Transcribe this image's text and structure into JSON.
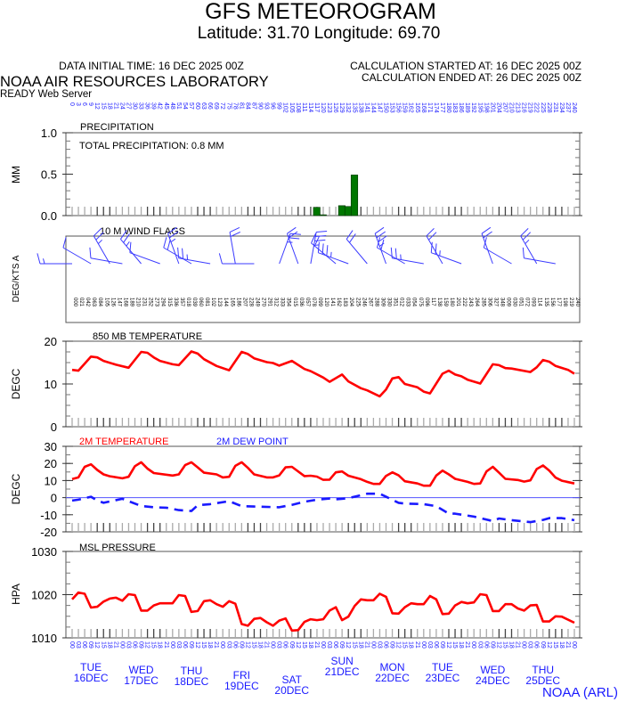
{
  "header": {
    "title": "GFS METEOROGRAM",
    "location": "Latitude: 31.70 Longitude:  69.70",
    "data_initial_time": "DATA INITIAL TIME: 16 DEC 2025 00Z",
    "calc_started": "CALCULATION STARTED AT: 16 DEC 2025 00Z",
    "calc_ended": "CALCULATION ENDED AT: 26 DEC 2025 00Z",
    "org": "NOAA AIR RESOURCES LABORATORY",
    "server": "READY Web Server",
    "credit": "NOAA (ARL)"
  },
  "colors": {
    "red": "#ff0000",
    "blue": "#1a1aff",
    "green": "#007700",
    "barb": "#3b3bff"
  },
  "chart_data": [
    {
      "type": "bar",
      "title": "PRECIPITATION",
      "annotation": "TOTAL PRECIPITATION:   0.8 MM",
      "ylabel": "MM",
      "ylim": [
        0,
        1.0
      ],
      "yticks": [
        "1.0",
        "0.5",
        "0.0"
      ],
      "ytick_values": [
        1.0,
        0.5,
        0.0
      ],
      "x_hours": [
        117,
        120,
        129,
        132,
        135
      ],
      "values": [
        0.1,
        0.01,
        0.12,
        0.11,
        0.49
      ]
    },
    {
      "type": "wind-barbs",
      "title": "10 M  WIND FLAGS",
      "ylabel": "DEG/KTS  A",
      "barbs": [
        {
          "h": 0,
          "dir": 270,
          "kt": 5
        },
        {
          "h": 9,
          "dir": 300,
          "kt": 10
        },
        {
          "h": 18,
          "dir": 330,
          "kt": 15
        },
        {
          "h": 24,
          "dir": 280,
          "kt": 10
        },
        {
          "h": 33,
          "dir": 320,
          "kt": 15
        },
        {
          "h": 42,
          "dir": 290,
          "kt": 10
        },
        {
          "h": 51,
          "dir": 340,
          "kt": 15
        },
        {
          "h": 57,
          "dir": 300,
          "kt": 20
        },
        {
          "h": 66,
          "dir": 280,
          "kt": 15
        },
        {
          "h": 78,
          "dir": 350,
          "kt": 20
        },
        {
          "h": 87,
          "dir": 270,
          "kt": 10
        },
        {
          "h": 99,
          "dir": 20,
          "kt": 15
        },
        {
          "h": 108,
          "dir": 340,
          "kt": 20
        },
        {
          "h": 114,
          "dir": 10,
          "kt": 25
        },
        {
          "h": 126,
          "dir": 310,
          "kt": 20
        },
        {
          "h": 132,
          "dir": 290,
          "kt": 25
        },
        {
          "h": 141,
          "dir": 320,
          "kt": 20
        },
        {
          "h": 150,
          "dir": 340,
          "kt": 25
        },
        {
          "h": 159,
          "dir": 300,
          "kt": 20
        },
        {
          "h": 168,
          "dir": 280,
          "kt": 15
        },
        {
          "h": 177,
          "dir": 330,
          "kt": 20
        },
        {
          "h": 186,
          "dir": 290,
          "kt": 15
        },
        {
          "h": 201,
          "dir": 340,
          "kt": 20
        },
        {
          "h": 210,
          "dir": 300,
          "kt": 10
        },
        {
          "h": 222,
          "dir": 330,
          "kt": 15
        },
        {
          "h": 231,
          "dir": 280,
          "kt": 10
        }
      ]
    },
    {
      "type": "line",
      "title": "850 MB  TEMPERATURE",
      "ylabel": "DEGC",
      "ylim": [
        0,
        20
      ],
      "yticks": [
        "20",
        "10",
        "0"
      ],
      "ytick_values": [
        20,
        10,
        0
      ],
      "series": [
        {
          "name": "850 MB TEMPERATURE",
          "color": "#ff0000",
          "x": [
            0,
            3,
            9,
            12,
            15,
            21,
            27,
            33,
            36,
            39,
            42,
            48,
            51,
            57,
            60,
            63,
            69,
            75,
            81,
            84,
            87,
            93,
            96,
            99,
            105,
            111,
            114,
            120,
            123,
            129,
            132,
            138,
            141,
            147,
            150,
            153,
            156,
            159,
            165,
            168,
            171,
            177,
            180,
            183,
            186,
            189,
            195,
            201,
            204,
            207,
            210,
            219,
            222,
            225,
            228,
            231,
            237,
            240
          ],
          "y": [
            13.3,
            13.1,
            16.4,
            16.2,
            15.4,
            14.5,
            13.8,
            17.5,
            17.3,
            16.2,
            15.4,
            14.6,
            14.4,
            17.6,
            17.1,
            15.8,
            14.2,
            13.2,
            17.5,
            17.0,
            16.0,
            15.1,
            14.9,
            14.3,
            15.4,
            13.5,
            13.0,
            11.5,
            10.5,
            12.2,
            10.6,
            9.0,
            8.5,
            7.1,
            8.7,
            11.3,
            11.6,
            10.0,
            9.2,
            8.2,
            7.8,
            12.4,
            13.1,
            12.2,
            11.8,
            11.0,
            10.1,
            14.6,
            14.4,
            13.7,
            13.6,
            12.8,
            13.9,
            15.6,
            15.2,
            14.2,
            13.3,
            12.4
          ]
        }
      ]
    },
    {
      "type": "line",
      "title": "2M TEMPERATURE / 2M DEW POINT",
      "ylabel": "DEGC",
      "ylim": [
        -20,
        30
      ],
      "yticks": [
        "30",
        "20",
        "10",
        "0",
        "-10",
        "-20"
      ],
      "ytick_values": [
        30,
        20,
        10,
        0,
        -10,
        -20
      ],
      "series": [
        {
          "name": "2M TEMPERATURE",
          "color": "#ff0000",
          "dashed": false,
          "x": [
            0,
            3,
            6,
            9,
            12,
            15,
            18,
            24,
            27,
            30,
            33,
            36,
            39,
            48,
            51,
            54,
            57,
            60,
            63,
            69,
            72,
            75,
            78,
            81,
            84,
            87,
            93,
            96,
            99,
            102,
            105,
            111,
            114,
            117,
            120,
            123,
            126,
            129,
            132,
            138,
            141,
            144,
            147,
            150,
            153,
            156,
            159,
            165,
            168,
            171,
            174,
            177,
            180,
            183,
            189,
            192,
            195,
            198,
            201,
            204,
            207,
            213,
            216,
            219,
            222,
            225,
            228,
            231,
            234,
            240
          ],
          "y": [
            10.9,
            11.8,
            18.0,
            19.5,
            16.2,
            13.6,
            12.5,
            11.3,
            12.2,
            18.4,
            20.7,
            17.0,
            14.4,
            12.9,
            13.6,
            19.0,
            20.7,
            17.7,
            14.6,
            13.6,
            11.8,
            12.2,
            18.6,
            20.7,
            17.4,
            13.6,
            11.8,
            11.8,
            13.0,
            17.7,
            18.0,
            12.6,
            12.8,
            12.3,
            10.4,
            10.5,
            14.8,
            15.3,
            12.8,
            10.8,
            9.2,
            8.0,
            8.0,
            12.7,
            14.8,
            13.0,
            9.6,
            8.3,
            7.0,
            7.0,
            12.9,
            15.8,
            13.6,
            11.0,
            9.2,
            8.0,
            8.3,
            15.3,
            18.0,
            14.6,
            11.0,
            10.3,
            9.4,
            10.1,
            16.7,
            18.8,
            15.8,
            11.7,
            9.9,
            8.3
          ]
        },
        {
          "name": "2M   DEW POINT",
          "color": "#1a1aff",
          "dashed": true,
          "x": [
            0,
            3,
            9,
            12,
            15,
            24,
            27,
            33,
            39,
            45,
            51,
            57,
            60,
            66,
            75,
            81,
            87,
            99,
            105,
            111,
            117,
            123,
            126,
            132,
            141,
            147,
            150,
            156,
            159,
            168,
            174,
            180,
            183,
            192,
            201,
            204,
            210,
            219,
            225,
            228,
            234,
            240
          ],
          "y": [
            -1.7,
            -1.2,
            0.5,
            -1.7,
            -3.0,
            -0.7,
            -2.1,
            -4.9,
            -5.6,
            -5.9,
            -7.3,
            -7.8,
            -4.5,
            -3.8,
            -2.1,
            -5.0,
            -5.2,
            -5.6,
            -4.2,
            -2.4,
            -1.2,
            -0.5,
            -1.0,
            -0.3,
            2.3,
            2.3,
            0.5,
            -3.0,
            -3.5,
            -3.8,
            -5.0,
            -9.4,
            -9.4,
            -11.1,
            -13.7,
            -12.2,
            -13.2,
            -14.3,
            -13.0,
            -12.0,
            -12.0,
            -13.2
          ]
        }
      ]
    },
    {
      "type": "line",
      "title": "MSL PRESSURE",
      "ylabel": "HPA",
      "ylim": [
        1010,
        1030
      ],
      "yticks": [
        "1030",
        "1020",
        "1010"
      ],
      "ytick_values": [
        1030,
        1020,
        1010
      ],
      "series": [
        {
          "name": "MSL PRESSURE",
          "color": "#ff0000",
          "x": [
            0,
            3,
            6,
            9,
            12,
            15,
            18,
            21,
            24,
            27,
            30,
            33,
            36,
            39,
            42,
            48,
            51,
            54,
            57,
            60,
            63,
            66,
            69,
            72,
            75,
            78,
            81,
            84,
            87,
            90,
            93,
            96,
            99,
            102,
            105,
            108,
            111,
            114,
            117,
            120,
            123,
            126,
            129,
            132,
            135,
            138,
            141,
            144,
            147,
            150,
            153,
            156,
            159,
            162,
            165,
            168,
            171,
            174,
            177,
            180,
            183,
            186,
            189,
            192,
            195,
            198,
            201,
            204,
            207,
            210,
            213,
            216,
            219,
            222,
            225,
            228,
            231,
            234,
            240
          ],
          "y": [
            1018.9,
            1020.5,
            1020.2,
            1017.0,
            1017.2,
            1018.4,
            1019.1,
            1019.3,
            1018.6,
            1020.1,
            1019.9,
            1016.3,
            1016.3,
            1017.5,
            1018.0,
            1018.0,
            1019.9,
            1019.7,
            1016.0,
            1016.2,
            1018.5,
            1018.7,
            1017.8,
            1017.2,
            1018.5,
            1017.9,
            1013.2,
            1012.8,
            1014.4,
            1014.6,
            1013.6,
            1012.8,
            1014.0,
            1014.5,
            1011.7,
            1011.8,
            1013.7,
            1014.3,
            1014.1,
            1014.3,
            1016.3,
            1017.1,
            1014.1,
            1014.9,
            1017.4,
            1018.9,
            1018.7,
            1018.7,
            1020.2,
            1019.5,
            1015.7,
            1015.6,
            1017.1,
            1018.0,
            1017.8,
            1017.8,
            1019.7,
            1018.9,
            1015.5,
            1015.6,
            1017.5,
            1018.3,
            1018.0,
            1018.2,
            1020.1,
            1019.9,
            1016.2,
            1016.2,
            1017.8,
            1017.8,
            1016.8,
            1016.3,
            1017.5,
            1017.6,
            1013.8,
            1013.8,
            1015.0,
            1014.9,
            1013.5
          ]
        }
      ]
    }
  ],
  "legend": {
    "temp": "2M TEMPERATURE",
    "dew": "2M   DEW POINT"
  },
  "x_axis": {
    "forecast_hours": {
      "start": 0,
      "end": 240,
      "step": 3
    },
    "hour_of_day_labels": [
      "00",
      "03",
      "06",
      "09",
      "12",
      "15",
      "18",
      "21"
    ],
    "days": [
      {
        "dow": "TUE",
        "date": "16DEC"
      },
      {
        "dow": "WED",
        "date": "17DEC"
      },
      {
        "dow": "THU",
        "date": "18DEC"
      },
      {
        "dow": "FRI",
        "date": "19DEC"
      },
      {
        "dow": "SAT",
        "date": "20DEC"
      },
      {
        "dow": "SUN",
        "date": "21DEC"
      },
      {
        "dow": "MON",
        "date": "22DEC"
      },
      {
        "dow": "TUE",
        "date": "23DEC"
      },
      {
        "dow": "WED",
        "date": "24DEC"
      },
      {
        "dow": "THU",
        "date": "25DEC"
      }
    ]
  }
}
